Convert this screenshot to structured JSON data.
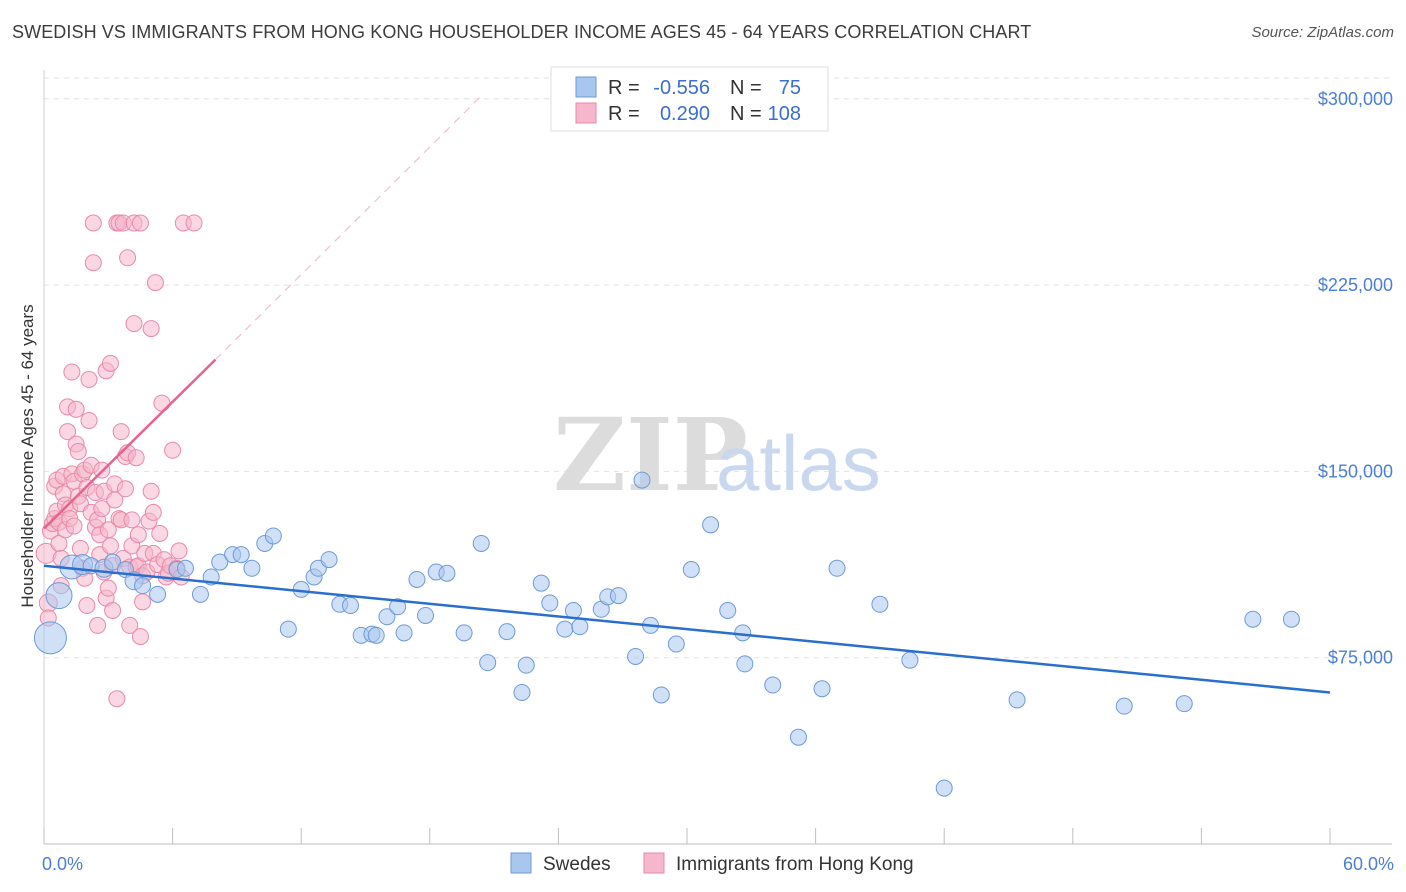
{
  "title": "SWEDISH VS IMMIGRANTS FROM HONG KONG HOUSEHOLDER INCOME AGES 45 - 64 YEARS CORRELATION CHART",
  "source": "Source: ZipAtlas.com",
  "watermark": {
    "zip": "ZIP",
    "atlas": "atlas"
  },
  "colors": {
    "blue_fill": "#a9c6ef",
    "blue_stroke": "#6f9ad8",
    "blue_line": "#2a6fce",
    "pink_fill": "#f6b6cb",
    "pink_stroke": "#e88aa9",
    "pink_line": "#e8628f",
    "tick_text": "#4a7fd4",
    "grid": "#e2e2e2"
  },
  "legend": {
    "rows": [
      {
        "r_label": "R =",
        "r_value": "-0.556",
        "n_label": "N =",
        "n_value": "75",
        "series": "blue"
      },
      {
        "r_label": "R =",
        "r_value": "0.290",
        "n_label": "N =",
        "n_value": "108",
        "series": "pink"
      }
    ]
  },
  "bottom_legend": [
    "Swedes",
    "Immigrants from Hong Kong"
  ],
  "chart_data": {
    "type": "scatter",
    "title": "SWEDISH VS IMMIGRANTS FROM HONG KONG HOUSEHOLDER INCOME AGES 45 - 64 YEARS CORRELATION CHART",
    "xlabel": "",
    "ylabel": "Householder Income Ages 45 - 64 years",
    "xlim": [
      0,
      60
    ],
    "ylim": [
      0,
      312000
    ],
    "x_tick_labels": [
      "0.0%",
      "60.0%"
    ],
    "y_ticks": [
      75000,
      150000,
      225000,
      300000
    ],
    "y_tick_labels": [
      "$75,000",
      "$150,000",
      "$225,000",
      "$300,000"
    ],
    "grid": "horizontal dashed",
    "legend_position": "top-center",
    "series": [
      {
        "name": "Swedes",
        "color": "blue",
        "r": -0.556,
        "n": 75,
        "trend": {
          "x": [
            0,
            60
          ],
          "y": [
            112000,
            61000
          ]
        },
        "points": [
          [
            0.3,
            83000,
            16
          ],
          [
            0.7,
            100000,
            13
          ],
          [
            1.3,
            111500,
            12
          ],
          [
            1.8,
            112500,
            10
          ],
          [
            2.2,
            112000,
            8
          ],
          [
            2.8,
            111000,
            9
          ],
          [
            3.2,
            113500,
            8
          ],
          [
            3.8,
            110500,
            8
          ],
          [
            4.2,
            106000,
            9
          ],
          [
            4.6,
            104000,
            8
          ],
          [
            5.3,
            100500,
            8
          ],
          [
            6.2,
            110500,
            8
          ],
          [
            6.6,
            111000,
            8
          ],
          [
            7.3,
            100500,
            8
          ],
          [
            7.8,
            107500,
            8
          ],
          [
            8.2,
            113500,
            8
          ],
          [
            8.8,
            116500,
            8
          ],
          [
            9.2,
            116500,
            8
          ],
          [
            9.7,
            111000,
            8
          ],
          [
            10.3,
            121000,
            8
          ],
          [
            10.7,
            124000,
            8
          ],
          [
            11.4,
            86500,
            8
          ],
          [
            12.0,
            102500,
            8
          ],
          [
            12.6,
            107500,
            8
          ],
          [
            12.8,
            111000,
            8
          ],
          [
            13.3,
            114500,
            8
          ],
          [
            13.8,
            96500,
            8
          ],
          [
            14.3,
            96000,
            8
          ],
          [
            14.8,
            84000,
            8
          ],
          [
            15.3,
            84500,
            8
          ],
          [
            15.5,
            84000,
            8
          ],
          [
            16.0,
            91500,
            8
          ],
          [
            16.5,
            95500,
            8
          ],
          [
            16.8,
            85000,
            8
          ],
          [
            17.4,
            106500,
            8
          ],
          [
            17.8,
            92000,
            8
          ],
          [
            18.3,
            109500,
            8
          ],
          [
            18.8,
            109000,
            8
          ],
          [
            19.6,
            85000,
            8
          ],
          [
            20.4,
            121000,
            8
          ],
          [
            20.7,
            73000,
            8
          ],
          [
            21.6,
            85500,
            8
          ],
          [
            22.3,
            61000,
            8
          ],
          [
            22.5,
            72000,
            8
          ],
          [
            23.2,
            105000,
            8
          ],
          [
            23.6,
            97000,
            8
          ],
          [
            24.3,
            86500,
            8
          ],
          [
            24.7,
            94000,
            8
          ],
          [
            25.0,
            87500,
            8
          ],
          [
            26.0,
            94500,
            8
          ],
          [
            26.3,
            99500,
            8
          ],
          [
            26.8,
            100000,
            8
          ],
          [
            27.6,
            75500,
            8
          ],
          [
            27.9,
            146500,
            8
          ],
          [
            28.3,
            88000,
            8
          ],
          [
            28.8,
            60000,
            8
          ],
          [
            29.5,
            80500,
            8
          ],
          [
            30.2,
            110500,
            8
          ],
          [
            31.1,
            128500,
            8
          ],
          [
            31.9,
            94000,
            8
          ],
          [
            32.6,
            85000,
            8
          ],
          [
            32.7,
            72500,
            8
          ],
          [
            34.0,
            64000,
            8
          ],
          [
            35.2,
            43000,
            8
          ],
          [
            36.3,
            62500,
            8
          ],
          [
            37.0,
            111000,
            8
          ],
          [
            39.0,
            96500,
            8
          ],
          [
            40.4,
            74000,
            8
          ],
          [
            42.0,
            22500,
            8
          ],
          [
            45.4,
            58000,
            8
          ],
          [
            50.4,
            55500,
            8
          ],
          [
            53.2,
            56500,
            8
          ],
          [
            56.4,
            90500,
            8
          ],
          [
            58.2,
            90500,
            8
          ]
        ]
      },
      {
        "name": "Immigrants from Hong Kong",
        "color": "pink",
        "r": 0.29,
        "n": 108,
        "trend": {
          "x": [
            0,
            8
          ],
          "y": [
            127000,
            195000
          ]
        },
        "trend_extension": {
          "x": [
            8,
            20.5
          ],
          "y": [
            195000,
            302000
          ]
        },
        "points": [
          [
            0.1,
            117000,
            10
          ],
          [
            0.2,
            97000,
            9
          ],
          [
            0.2,
            91000,
            8
          ],
          [
            0.3,
            126000,
            8
          ],
          [
            0.4,
            129000,
            8
          ],
          [
            0.5,
            131000,
            8
          ],
          [
            0.5,
            144000,
            8
          ],
          [
            0.6,
            146500,
            8
          ],
          [
            0.6,
            134000,
            8
          ],
          [
            0.7,
            129500,
            8
          ],
          [
            0.7,
            121000,
            8
          ],
          [
            0.8,
            115000,
            8
          ],
          [
            0.8,
            104000,
            8
          ],
          [
            0.9,
            141000,
            8
          ],
          [
            0.9,
            148000,
            8
          ],
          [
            1.0,
            136500,
            8
          ],
          [
            1.0,
            126500,
            8
          ],
          [
            1.1,
            166000,
            8
          ],
          [
            1.1,
            176000,
            8
          ],
          [
            1.2,
            135000,
            8
          ],
          [
            1.2,
            131000,
            8
          ],
          [
            1.3,
            149000,
            8
          ],
          [
            1.3,
            190000,
            8
          ],
          [
            1.4,
            146000,
            8
          ],
          [
            1.4,
            128000,
            8
          ],
          [
            1.5,
            175000,
            8
          ],
          [
            1.5,
            161000,
            8
          ],
          [
            1.6,
            158000,
            8
          ],
          [
            1.6,
            140000,
            8
          ],
          [
            1.7,
            137000,
            8
          ],
          [
            1.7,
            119000,
            8
          ],
          [
            1.8,
            149000,
            8
          ],
          [
            1.8,
            111000,
            8
          ],
          [
            1.9,
            150500,
            8
          ],
          [
            1.9,
            107000,
            8
          ],
          [
            2.0,
            143500,
            8
          ],
          [
            2.0,
            96000,
            8
          ],
          [
            2.1,
            170500,
            8
          ],
          [
            2.1,
            187000,
            8
          ],
          [
            2.2,
            133500,
            8
          ],
          [
            2.2,
            152500,
            8
          ],
          [
            2.3,
            250000,
            8
          ],
          [
            2.3,
            234000,
            8
          ],
          [
            2.4,
            141500,
            8
          ],
          [
            2.4,
            127500,
            8
          ],
          [
            2.5,
            130500,
            8
          ],
          [
            2.5,
            88000,
            8
          ],
          [
            2.6,
            124500,
            8
          ],
          [
            2.6,
            116500,
            8
          ],
          [
            2.7,
            150500,
            8
          ],
          [
            2.7,
            135000,
            8
          ],
          [
            2.8,
            142000,
            8
          ],
          [
            2.8,
            109500,
            8
          ],
          [
            2.9,
            190500,
            8
          ],
          [
            2.9,
            99000,
            8
          ],
          [
            3.0,
            103000,
            8
          ],
          [
            3.0,
            126500,
            8
          ],
          [
            3.1,
            193500,
            8
          ],
          [
            3.1,
            120000,
            8
          ],
          [
            3.2,
            112000,
            8
          ],
          [
            3.2,
            94000,
            8
          ],
          [
            3.3,
            145000,
            8
          ],
          [
            3.3,
            138500,
            8
          ],
          [
            3.4,
            58500,
            8
          ],
          [
            3.4,
            250000,
            8
          ],
          [
            3.5,
            250000,
            8
          ],
          [
            3.5,
            131000,
            8
          ],
          [
            3.6,
            166000,
            8
          ],
          [
            3.6,
            130500,
            8
          ],
          [
            3.7,
            250000,
            8
          ],
          [
            3.7,
            115000,
            8
          ],
          [
            3.8,
            156000,
            8
          ],
          [
            3.8,
            143000,
            8
          ],
          [
            3.9,
            236000,
            8
          ],
          [
            3.9,
            157500,
            8
          ],
          [
            4.0,
            111500,
            8
          ],
          [
            4.0,
            88000,
            8
          ],
          [
            4.1,
            120000,
            8
          ],
          [
            4.1,
            130500,
            8
          ],
          [
            4.2,
            250000,
            8
          ],
          [
            4.2,
            209500,
            8
          ],
          [
            4.3,
            111500,
            8
          ],
          [
            4.3,
            155500,
            8
          ],
          [
            4.4,
            124500,
            8
          ],
          [
            4.4,
            112000,
            8
          ],
          [
            4.5,
            83500,
            8
          ],
          [
            4.5,
            250000,
            8
          ],
          [
            4.6,
            108000,
            8
          ],
          [
            4.6,
            97500,
            8
          ],
          [
            4.7,
            117000,
            8
          ],
          [
            4.8,
            109500,
            8
          ],
          [
            4.9,
            130000,
            8
          ],
          [
            5.0,
            207500,
            8
          ],
          [
            5.0,
            142000,
            8
          ],
          [
            5.1,
            133500,
            8
          ],
          [
            5.1,
            117000,
            8
          ],
          [
            5.2,
            226000,
            8
          ],
          [
            5.3,
            112500,
            8
          ],
          [
            5.4,
            125000,
            8
          ],
          [
            5.5,
            177500,
            8
          ],
          [
            5.6,
            114500,
            8
          ],
          [
            5.7,
            107500,
            8
          ],
          [
            5.8,
            109000,
            8
          ],
          [
            5.9,
            112000,
            8
          ],
          [
            6.0,
            158500,
            8
          ],
          [
            6.2,
            111000,
            8
          ],
          [
            6.3,
            118000,
            8
          ],
          [
            6.4,
            107500,
            8
          ],
          [
            6.5,
            250000,
            8
          ],
          [
            7.0,
            250000,
            8
          ]
        ]
      }
    ]
  }
}
